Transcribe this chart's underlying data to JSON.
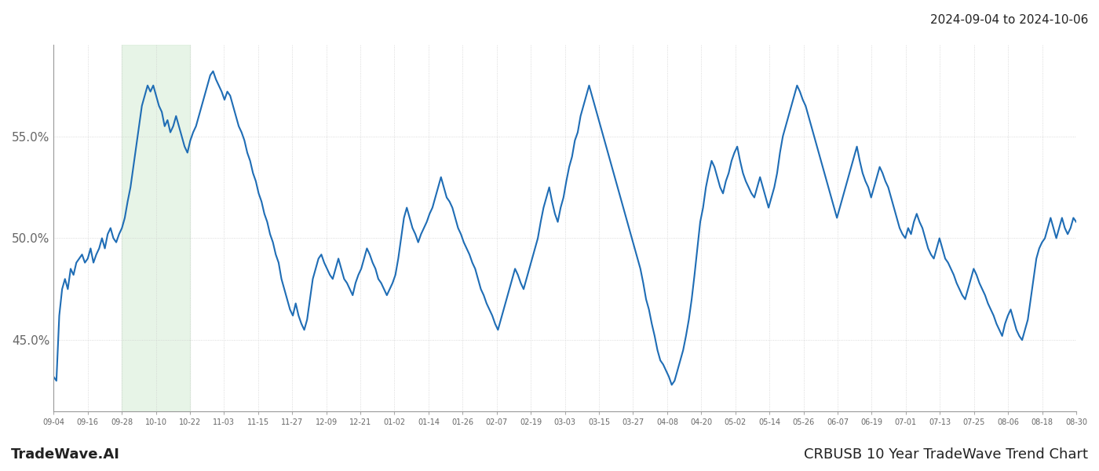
{
  "title_top_right": "2024-09-04 to 2024-10-06",
  "title_bottom_left": "TradeWave.AI",
  "title_bottom_right": "CRBUSB 10 Year TradeWave Trend Chart",
  "background_color": "#ffffff",
  "line_color": "#1f6db5",
  "line_width": 1.5,
  "shade_color": "#d5ecd5",
  "shade_alpha": 0.55,
  "ylim": [
    41.5,
    59.5
  ],
  "y_ticks": [
    45.0,
    50.0,
    55.0
  ],
  "x_labels": [
    "09-04",
    "09-16",
    "09-28",
    "10-10",
    "10-22",
    "11-03",
    "11-15",
    "11-27",
    "12-09",
    "12-21",
    "01-02",
    "01-14",
    "01-26",
    "02-07",
    "02-19",
    "03-03",
    "03-15",
    "03-27",
    "04-08",
    "04-20",
    "05-02",
    "05-14",
    "05-26",
    "06-07",
    "06-19",
    "07-01",
    "07-13",
    "07-25",
    "08-06",
    "08-18",
    "08-30"
  ],
  "shade_start_label": "09-28",
  "shade_end_label": "10-22",
  "detailed_values": [
    43.2,
    43.0,
    46.2,
    47.5,
    48.0,
    47.5,
    48.5,
    48.2,
    48.8,
    49.0,
    49.2,
    48.8,
    49.0,
    49.5,
    48.8,
    49.2,
    49.5,
    50.0,
    49.5,
    50.2,
    50.5,
    50.0,
    49.8,
    50.2,
    50.5,
    51.0,
    51.8,
    52.5,
    53.5,
    54.5,
    55.5,
    56.5,
    57.0,
    57.5,
    57.2,
    57.5,
    57.0,
    56.5,
    56.2,
    55.5,
    55.8,
    55.2,
    55.5,
    56.0,
    55.5,
    55.0,
    54.5,
    54.2,
    54.8,
    55.2,
    55.5,
    56.0,
    56.5,
    57.0,
    57.5,
    58.0,
    58.2,
    57.8,
    57.5,
    57.2,
    56.8,
    57.2,
    57.0,
    56.5,
    56.0,
    55.5,
    55.2,
    54.8,
    54.2,
    53.8,
    53.2,
    52.8,
    52.2,
    51.8,
    51.2,
    50.8,
    50.2,
    49.8,
    49.2,
    48.8,
    48.0,
    47.5,
    47.0,
    46.5,
    46.2,
    46.8,
    46.2,
    45.8,
    45.5,
    46.0,
    47.0,
    48.0,
    48.5,
    49.0,
    49.2,
    48.8,
    48.5,
    48.2,
    48.0,
    48.5,
    49.0,
    48.5,
    48.0,
    47.8,
    47.5,
    47.2,
    47.8,
    48.2,
    48.5,
    49.0,
    49.5,
    49.2,
    48.8,
    48.5,
    48.0,
    47.8,
    47.5,
    47.2,
    47.5,
    47.8,
    48.2,
    49.0,
    50.0,
    51.0,
    51.5,
    51.0,
    50.5,
    50.2,
    49.8,
    50.2,
    50.5,
    50.8,
    51.2,
    51.5,
    52.0,
    52.5,
    53.0,
    52.5,
    52.0,
    51.8,
    51.5,
    51.0,
    50.5,
    50.2,
    49.8,
    49.5,
    49.2,
    48.8,
    48.5,
    48.0,
    47.5,
    47.2,
    46.8,
    46.5,
    46.2,
    45.8,
    45.5,
    46.0,
    46.5,
    47.0,
    47.5,
    48.0,
    48.5,
    48.2,
    47.8,
    47.5,
    48.0,
    48.5,
    49.0,
    49.5,
    50.0,
    50.8,
    51.5,
    52.0,
    52.5,
    51.8,
    51.2,
    50.8,
    51.5,
    52.0,
    52.8,
    53.5,
    54.0,
    54.8,
    55.2,
    56.0,
    56.5,
    57.0,
    57.5,
    57.0,
    56.5,
    56.0,
    55.5,
    55.0,
    54.5,
    54.0,
    53.5,
    53.0,
    52.5,
    52.0,
    51.5,
    51.0,
    50.5,
    50.0,
    49.5,
    49.0,
    48.5,
    47.8,
    47.0,
    46.5,
    45.8,
    45.2,
    44.5,
    44.0,
    43.8,
    43.5,
    43.2,
    42.8,
    43.0,
    43.5,
    44.0,
    44.5,
    45.2,
    46.0,
    47.0,
    48.2,
    49.5,
    50.8,
    51.5,
    52.5,
    53.2,
    53.8,
    53.5,
    53.0,
    52.5,
    52.2,
    52.8,
    53.2,
    53.8,
    54.2,
    54.5,
    53.8,
    53.2,
    52.8,
    52.5,
    52.2,
    52.0,
    52.5,
    53.0,
    52.5,
    52.0,
    51.5,
    52.0,
    52.5,
    53.2,
    54.2,
    55.0,
    55.5,
    56.0,
    56.5,
    57.0,
    57.5,
    57.2,
    56.8,
    56.5,
    56.0,
    55.5,
    55.0,
    54.5,
    54.0,
    53.5,
    53.0,
    52.5,
    52.0,
    51.5,
    51.0,
    51.5,
    52.0,
    52.5,
    53.0,
    53.5,
    54.0,
    54.5,
    53.8,
    53.2,
    52.8,
    52.5,
    52.0,
    52.5,
    53.0,
    53.5,
    53.2,
    52.8,
    52.5,
    52.0,
    51.5,
    51.0,
    50.5,
    50.2,
    50.0,
    50.5,
    50.2,
    50.8,
    51.2,
    50.8,
    50.5,
    50.0,
    49.5,
    49.2,
    49.0,
    49.5,
    50.0,
    49.5,
    49.0,
    48.8,
    48.5,
    48.2,
    47.8,
    47.5,
    47.2,
    47.0,
    47.5,
    48.0,
    48.5,
    48.2,
    47.8,
    47.5,
    47.2,
    46.8,
    46.5,
    46.2,
    45.8,
    45.5,
    45.2,
    45.8,
    46.2,
    46.5,
    46.0,
    45.5,
    45.2,
    45.0,
    45.5,
    46.0,
    47.0,
    48.0,
    49.0,
    49.5,
    49.8,
    50.0,
    50.5,
    51.0,
    50.5,
    50.0,
    50.5,
    51.0,
    50.5,
    50.2,
    50.5,
    51.0,
    50.8
  ]
}
